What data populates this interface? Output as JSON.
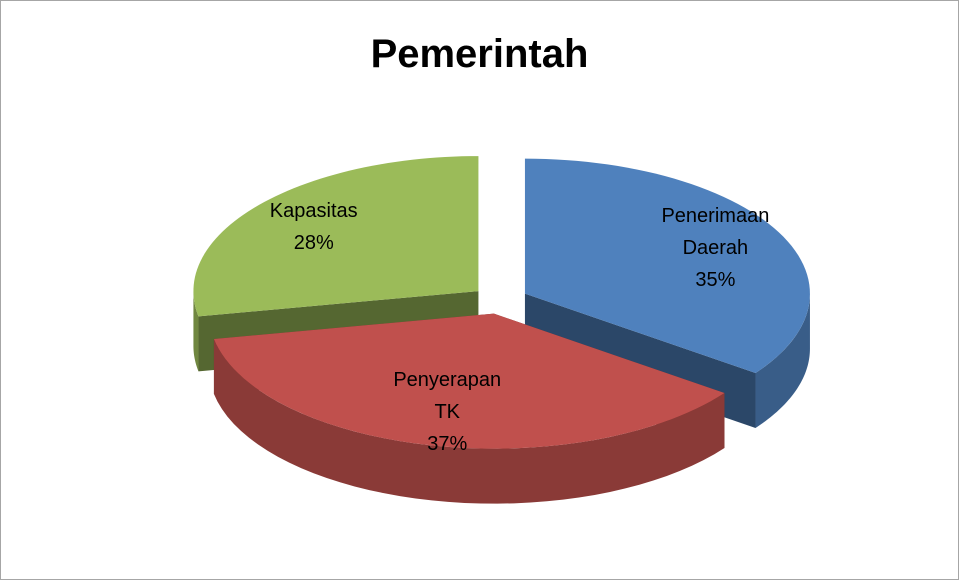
{
  "chart_data": {
    "type": "pie3d",
    "title": "Pemerintah",
    "categories": [
      "Penerimaan Daerah",
      "Penyerapan TK",
      "Kapasitas"
    ],
    "values": [
      35,
      37,
      28
    ],
    "value_labels": [
      "35%",
      "37%",
      "28%"
    ],
    "colors": [
      "#4f81bd",
      "#c0504d",
      "#9bbb59"
    ]
  }
}
